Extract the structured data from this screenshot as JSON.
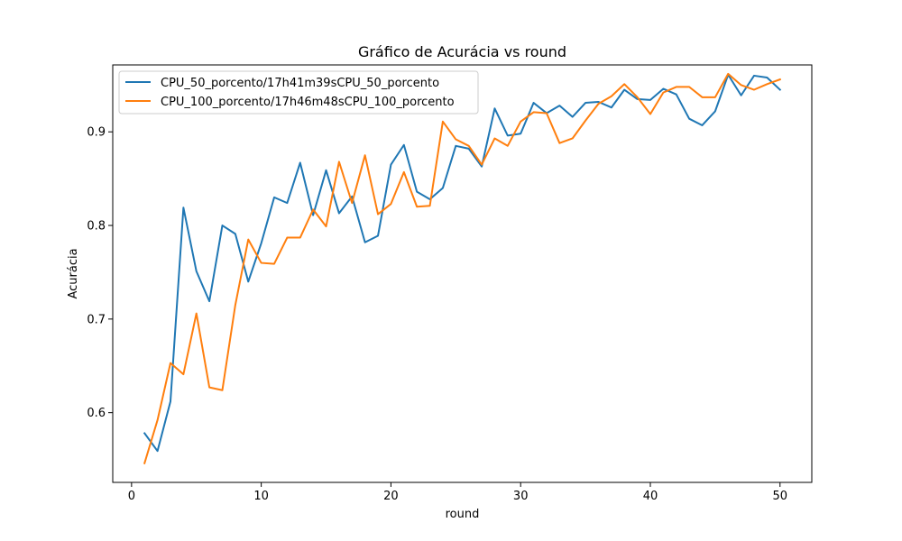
{
  "chart_data": {
    "type": "line",
    "title": "Gráfico de Acurácia vs round",
    "xlabel": "round",
    "ylabel": "Acurácia",
    "xlim": [
      -1.45,
      52.45
    ],
    "ylim": [
      0.5255,
      0.9715
    ],
    "xticks": [
      0,
      10,
      20,
      30,
      40,
      50
    ],
    "yticks": [
      0.6,
      0.7,
      0.8,
      0.9
    ],
    "xtick_labels": [
      "0",
      "10",
      "20",
      "30",
      "40",
      "50"
    ],
    "ytick_labels": [
      "0.6",
      "0.7",
      "0.8",
      "0.9"
    ],
    "grid": false,
    "legend_position": "top-left",
    "x": [
      1,
      2,
      3,
      4,
      5,
      6,
      7,
      8,
      9,
      10,
      11,
      12,
      13,
      14,
      15,
      16,
      17,
      18,
      19,
      20,
      21,
      22,
      23,
      24,
      25,
      26,
      27,
      28,
      29,
      30,
      31,
      32,
      33,
      34,
      35,
      36,
      37,
      38,
      39,
      40,
      41,
      42,
      43,
      44,
      45,
      46,
      47,
      48,
      49,
      50
    ],
    "series": [
      {
        "name": "CPU_50_porcento/17h41m39sCPU_50_porcento",
        "color": "#1f77b4",
        "values": [
          0.578,
          0.559,
          0.612,
          0.819,
          0.751,
          0.719,
          0.8,
          0.791,
          0.74,
          0.781,
          0.83,
          0.824,
          0.867,
          0.811,
          0.859,
          0.813,
          0.831,
          0.782,
          0.789,
          0.865,
          0.886,
          0.836,
          0.828,
          0.84,
          0.885,
          0.882,
          0.863,
          0.925,
          0.896,
          0.898,
          0.931,
          0.92,
          0.928,
          0.916,
          0.931,
          0.932,
          0.926,
          0.945,
          0.935,
          0.934,
          0.946,
          0.94,
          0.914,
          0.907,
          0.922,
          0.961,
          0.939,
          0.96,
          0.958,
          0.945
        ]
      },
      {
        "name": "CPU_100_porcento/17h46m48sCPU_100_porcento",
        "color": "#ff7f0e",
        "values": [
          0.546,
          0.592,
          0.653,
          0.641,
          0.706,
          0.627,
          0.624,
          0.715,
          0.785,
          0.76,
          0.759,
          0.787,
          0.787,
          0.817,
          0.799,
          0.868,
          0.824,
          0.875,
          0.812,
          0.823,
          0.857,
          0.82,
          0.821,
          0.911,
          0.892,
          0.885,
          0.865,
          0.893,
          0.885,
          0.911,
          0.921,
          0.92,
          0.888,
          0.893,
          0.912,
          0.93,
          0.938,
          0.951,
          0.937,
          0.919,
          0.942,
          0.948,
          0.948,
          0.937,
          0.937,
          0.962,
          0.95,
          0.945,
          0.951,
          0.956
        ]
      }
    ]
  }
}
